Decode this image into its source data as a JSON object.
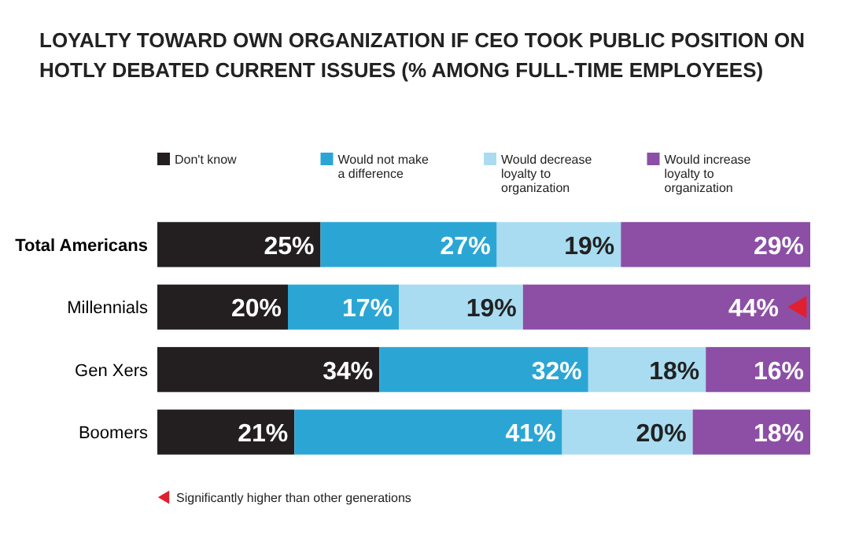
{
  "chart_data": {
    "type": "bar",
    "orientation": "horizontal",
    "stacked": true,
    "title": "LOYALTY TOWARD OWN ORGANIZATION IF CEO TOOK PUBLIC POSITION ON HOTLY DEBATED CURRENT ISSUES (% AMONG FULL-TIME EMPLOYEES)",
    "categories": [
      "Total Americans",
      "Millennials",
      "Gen Xers",
      "Boomers"
    ],
    "series": [
      {
        "name": "Don't know",
        "color": "#231f20",
        "values": [
          25,
          20,
          34,
          21
        ],
        "value_labels": [
          "25%",
          "20%",
          "34%",
          "21%"
        ]
      },
      {
        "name": "Would not make a difference",
        "color": "#2ba6d4",
        "values": [
          27,
          17,
          32,
          41
        ],
        "value_labels": [
          "27%",
          "17%",
          "32%",
          "41%"
        ]
      },
      {
        "name": "Would decrease loyalty to organization",
        "color": "#a9dcf1",
        "values": [
          19,
          19,
          18,
          20
        ],
        "value_labels": [
          "19%",
          "19%",
          "18%",
          "20%"
        ]
      },
      {
        "name": "Would increase loyalty to organization",
        "color": "#8c4fa5",
        "values": [
          29,
          44,
          16,
          18
        ],
        "value_labels": [
          "29%",
          "44%",
          "16%",
          "18%"
        ]
      },
      {
        "type": "scatter",
        "marker": "triangle",
        "name": "Significantly higher than other generations",
        "color": "#e0202e",
        "values": [
          null,
          98,
          null,
          null
        ]
      }
    ],
    "xlim": [
      0,
      100
    ],
    "tick_labels": "y",
    "legend": "top"
  }
}
